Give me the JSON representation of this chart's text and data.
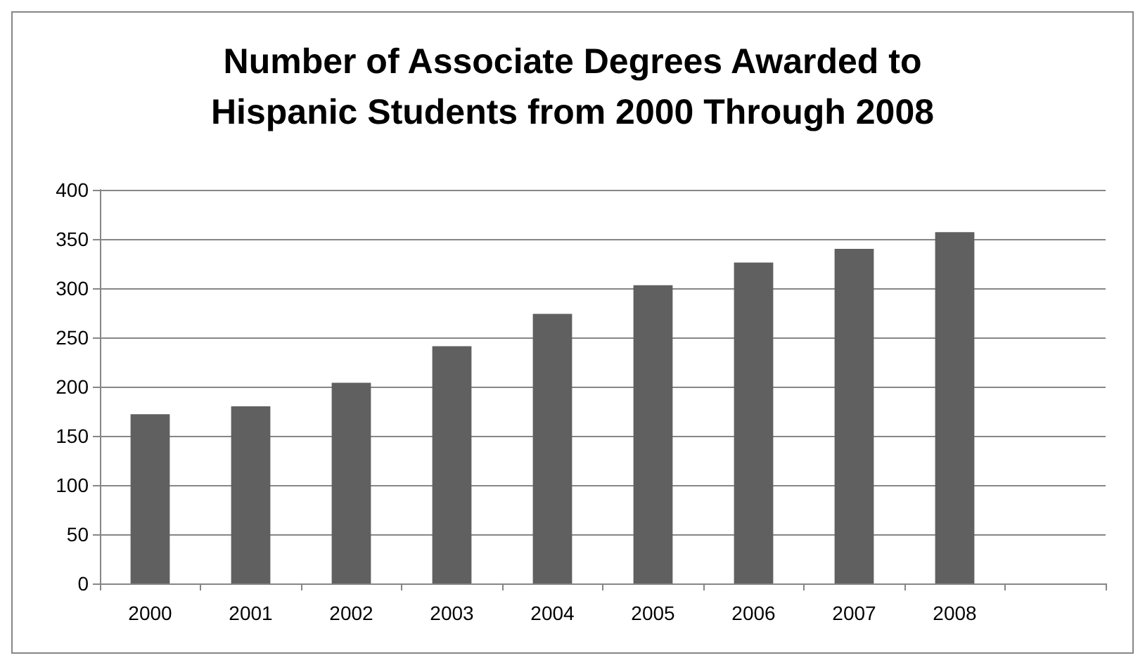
{
  "chart_data": {
    "type": "bar",
    "title": "Number of Associate Degrees Awarded to\nHispanic Students from 2000 Through 2008",
    "categories": [
      "2000",
      "2001",
      "2002",
      "2003",
      "2004",
      "2005",
      "2006",
      "2007",
      "2008",
      null
    ],
    "values": [
      172,
      180,
      204,
      241,
      274,
      303,
      326,
      340,
      357,
      null
    ],
    "color": "#606060",
    "ylim": [
      0,
      400
    ],
    "yticks": [
      0,
      50,
      100,
      150,
      200,
      250,
      300,
      350,
      400
    ],
    "grid": "y"
  }
}
